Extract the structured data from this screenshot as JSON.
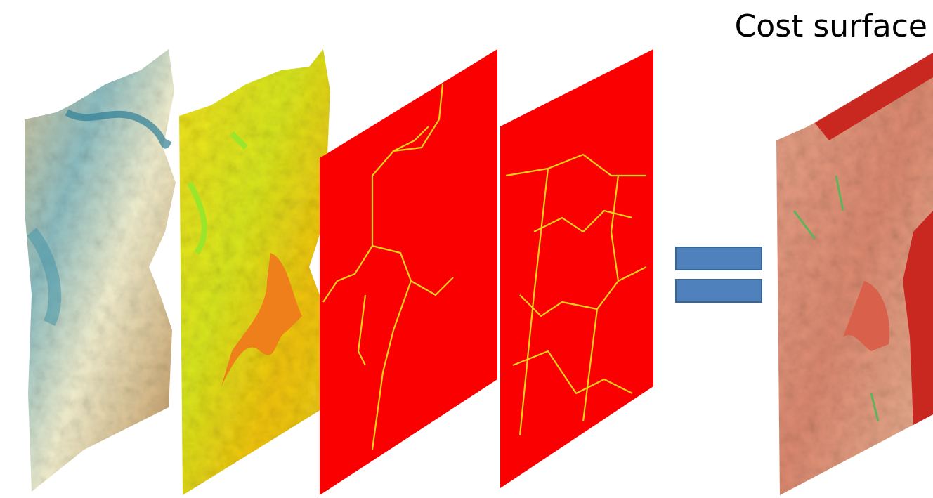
{
  "title": "Cost surface"
}
